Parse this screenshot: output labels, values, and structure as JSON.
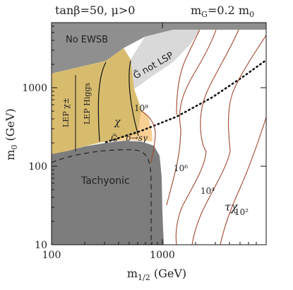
{
  "chart_data": {
    "type": "line",
    "title": "",
    "header_left": "tanβ=50, μ>0",
    "header_right": "mₓ=0.2 m₀",
    "header_right_main": "m",
    "header_right_sub": "G",
    "header_right_eq": "=0.2 m",
    "header_right_sub2": "0",
    "xlabel": "m1/2 (GeV)",
    "xlabel_main": "m",
    "xlabel_sub": "1/2",
    "xlabel_unit": " (GeV)",
    "ylabel": "m0 (GeV)",
    "ylabel_main": "m",
    "ylabel_sub": "0",
    "ylabel_unit": " (GeV)",
    "x_scale": "log",
    "y_scale": "log",
    "xlim": [
      100,
      6000
    ],
    "ylim": [
      10,
      6000
    ],
    "x_ticks": [
      "100",
      "1000"
    ],
    "y_ticks": [
      "10",
      "100",
      "1000"
    ],
    "region_labels": {
      "no_ewsb": "No EWSB",
      "g_not_lsp": "G̃ not LSP",
      "lep_chargino": "LEP χ±",
      "lep_higgs": "LEP Higgs",
      "tachyonic": "Tachyonic",
      "b_to_s_gamma": "b→sγ",
      "chi": "χ",
      "tau_chi": "τχ",
      "gravitino_low": "G̃"
    },
    "contour_labels": [
      "10⁸",
      "10⁶",
      "10⁴",
      "10²"
    ],
    "colors": {
      "no_ewsb": "#8f8f8f",
      "g_not_lsp": "#d9d9d9",
      "lep_excluded": "#d8bc6e",
      "b_to_s_gamma": "#f9cf94",
      "tachyonic": "#7d7d7d",
      "contours": "#a0482e",
      "boundary": "#111111"
    }
  }
}
